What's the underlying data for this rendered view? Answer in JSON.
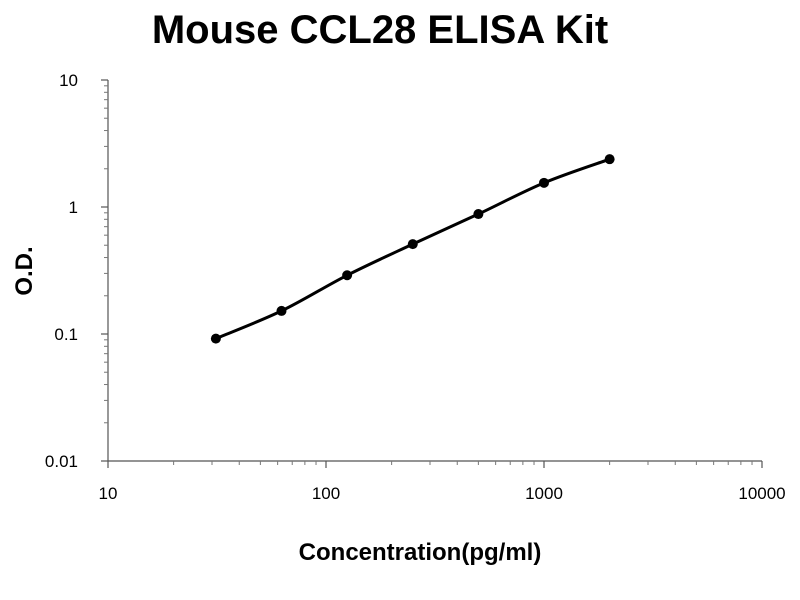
{
  "chart_data": {
    "type": "scatter",
    "title": "Mouse CCL28 ELISA Kit",
    "xlabel": "Concentration(pg/ml)",
    "ylabel": "O.D.",
    "x_scale": "log",
    "y_scale": "log",
    "xlim": [
      10,
      10000
    ],
    "ylim": [
      0.01,
      10
    ],
    "x_ticks": [
      "10",
      "100",
      "1000",
      "10000"
    ],
    "y_ticks": [
      "0.01",
      "0.1",
      "1",
      "10"
    ],
    "grid": false,
    "legend": "none",
    "series": [
      {
        "x": [
          31.25,
          62.5,
          125,
          250,
          500,
          1000,
          2000
        ],
        "y": [
          0.092,
          0.152,
          0.29,
          0.51,
          0.88,
          1.55,
          2.38
        ],
        "fit_curve": true
      }
    ],
    "colors": {
      "line": "#000000",
      "marker": "#000000"
    }
  }
}
